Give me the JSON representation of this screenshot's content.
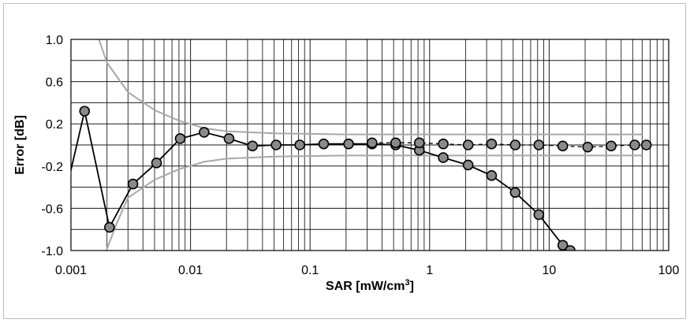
{
  "chart_data": {
    "type": "line",
    "xlabel_main": "SAR [mW/cm",
    "xlabel_sup": "3",
    "xlabel_end": "]",
    "ylabel": "Error [dB]",
    "xscale": "log",
    "xlim": [
      0.001,
      100
    ],
    "ylim": [
      -1.0,
      1.0
    ],
    "grid": true,
    "legend": "none",
    "xticks": [
      0.001,
      0.01,
      0.1,
      1,
      10,
      100
    ],
    "xtick_labels": [
      "0.001",
      "0.01",
      "0.1",
      "1",
      "10",
      "100"
    ],
    "yticks": [
      1.0,
      0.6,
      0.2,
      -0.2,
      -0.6,
      -1.0
    ],
    "ytick_labels": [
      "1.0",
      "0.6",
      "0.2",
      "-0.2",
      "-0.6",
      "-1.0"
    ],
    "colors": {
      "series": "#000000",
      "marker_fill": "#8a8a8a",
      "uncertainty": "#a8a8a8",
      "grid": "#1a1a1a",
      "minor_grid": "#9a9a9a"
    },
    "series": [
      {
        "marker": true,
        "line_style": "solid",
        "x": [
          0.00085,
          0.0013,
          0.0021,
          0.0033,
          0.0052,
          0.0082,
          0.013,
          0.021,
          0.033,
          0.052,
          0.082,
          0.13,
          0.21,
          0.33,
          0.52,
          0.82,
          1.3,
          2.1,
          3.3,
          5.2,
          8.2,
          13,
          15
        ],
        "y": [
          -0.58,
          0.32,
          -0.78,
          -0.37,
          -0.17,
          0.06,
          0.12,
          0.06,
          -0.01,
          0.0,
          0.0,
          0.01,
          0.01,
          0.01,
          0.0,
          -0.05,
          -0.12,
          -0.19,
          -0.29,
          -0.45,
          -0.66,
          -0.95,
          -1.0
        ]
      },
      {
        "marker": true,
        "line_style": "dashed",
        "x": [
          0.33,
          0.52,
          0.82,
          1.3,
          2.1,
          3.3,
          5.2,
          8.2,
          13,
          21,
          33,
          52,
          65
        ],
        "y": [
          0.02,
          0.02,
          0.02,
          0.01,
          0.0,
          0.01,
          0.0,
          0.0,
          -0.01,
          -0.02,
          -0.01,
          0.0,
          0.0
        ]
      },
      {
        "name_hint": "upper-bound",
        "marker": false,
        "line_style": "solid",
        "x": [
          0.0016,
          0.002,
          0.003,
          0.005,
          0.008,
          0.013,
          0.02,
          0.05,
          0.2,
          1,
          10,
          60
        ],
        "y": [
          1.1,
          0.78,
          0.5,
          0.33,
          0.23,
          0.16,
          0.13,
          0.11,
          0.1,
          0.1,
          0.1,
          0.1
        ]
      },
      {
        "name_hint": "lower-bound",
        "marker": false,
        "line_style": "solid",
        "x": [
          0.0019,
          0.0024,
          0.003,
          0.005,
          0.008,
          0.013,
          0.02,
          0.05,
          0.2,
          1,
          10,
          60
        ],
        "y": [
          -1.05,
          -0.75,
          -0.5,
          -0.33,
          -0.23,
          -0.16,
          -0.13,
          -0.11,
          -0.1,
          -0.1,
          -0.1,
          -0.1
        ]
      }
    ]
  }
}
